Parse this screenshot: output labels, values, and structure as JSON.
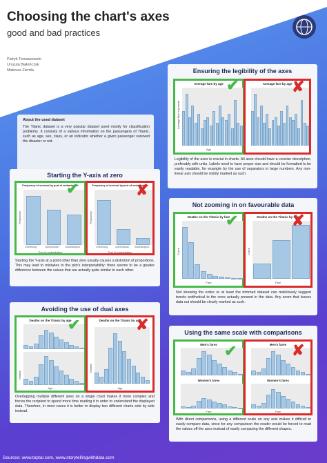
{
  "header": {
    "title": "Choosing the chart's axes",
    "subtitle": "good and bad practices",
    "authors": [
      "Patryk Tomaszewski",
      "Urszula Białończyk",
      "Mateusz Ziemła"
    ]
  },
  "intro": {
    "heading": "About the used dataset",
    "text": "The Titanic dataset is a very popular dataset used mostly for classification problems. It consists of a various information on the passengers of Titanic, such as age, sex, class, or an indicator whether a given passenger survived the disaster or not."
  },
  "sections": {
    "legibility": {
      "heading": "Ensuring the legibility of the axes",
      "chart_title": "Average fare by age",
      "ylabel": "Average fare in pounds",
      "xlabel": "Age",
      "text": "Legibility of the axes is crucial in charts. All axes should have a concise description, preferably with units. Labels need to have proper size and should be formatted to be easily readable, for example by the use of separators in large numbers. Any non-linear axis should be visibly marked as such."
    },
    "yzero": {
      "heading": "Starting the Y-axis at zero",
      "chart_title": "Frequency of survival by port of embarkation",
      "ylabel": "Frequency",
      "xlabel": "Port of embarkation",
      "categories": [
        "Cherbourg",
        "Queenstown",
        "Southampton"
      ],
      "text": "Starting the Y-axis at a point other than zero usually causes a distortion of proportions. This may lead to mistakes in the plot's interpretability: there seems to be a greater difference between the values that are actually quite similar to each other."
    },
    "zoom": {
      "heading": "Not zooming in on favourable data",
      "chart_title": "Deaths on the Titanic by fare",
      "ylabel": "Count",
      "xlabel": "Fare",
      "text": "Not showing the entire or at least the trimmed dataset can maliciously suggest trends antithetical to the ones actually present in the data. Any zoom that leaves data out should be clearly marked as such."
    },
    "dual": {
      "heading": "Avoiding the use of dual axes",
      "chart_title": "Deaths on the Titanic by age",
      "ylabel": "Deaths",
      "xlabel": "Age",
      "text": "Overlapping multiple different axes on a single chart makes it more complex and forces the recipient to spend more time reading it in order to understand the displayed data. Therefore, in most cases it is better to display two different charts side by side instead."
    },
    "scale": {
      "heading": "Using the same scale with comparisons",
      "top_title": "Men's fares",
      "bottom_title": "Women's fares",
      "xlabel": "Fare",
      "text": "With direct comparisons, using a different scale on any axis makes it difficult to easily compare data, since for any comparison the reader would be forced to read the values off the axes instead of easily comparing the different shapes."
    }
  },
  "chart_data": [
    {
      "type": "bar",
      "title": "Frequency of survival by port of embarkation",
      "categories": [
        "Cherbourg",
        "Queenstown",
        "Southampton"
      ],
      "values": [
        0.55,
        0.39,
        0.34
      ],
      "ylabel": "Frequency",
      "xlabel": "Port of embarkation",
      "ylim": [
        0,
        0.6
      ]
    },
    {
      "type": "bar",
      "title": "Frequency of survival by port of embarkation",
      "categories": [
        "Cherbourg",
        "Queenstown",
        "Southampton"
      ],
      "values": [
        0.55,
        0.39,
        0.34
      ],
      "ylabel": "Frequency",
      "xlabel": "Port of embarkation",
      "ylim": [
        0.3,
        0.6
      ]
    },
    {
      "type": "bar",
      "title": "Average fare by age",
      "values": [
        60,
        90,
        50,
        70,
        40,
        55,
        30,
        45,
        50,
        35,
        60,
        40,
        70,
        50,
        45,
        55,
        30,
        80,
        40,
        35
      ],
      "xlabel": "Age"
    },
    {
      "type": "bar",
      "title": "Deaths on the Titanic by fare",
      "values": [
        210,
        150,
        60,
        30,
        20,
        10,
        8,
        5,
        3,
        2
      ],
      "xlabel": "Fare",
      "ylabel": "Count"
    },
    {
      "type": "bar",
      "title": "Deaths on the Titanic by age",
      "values": [
        15,
        10,
        20,
        50,
        70,
        60,
        45,
        35,
        25,
        15,
        10,
        5
      ],
      "xlabel": "Age",
      "ylabel": "Deaths"
    }
  ],
  "footer": {
    "sources": "Sources: www.toptal.com, www.storytellingwithdata.com"
  }
}
